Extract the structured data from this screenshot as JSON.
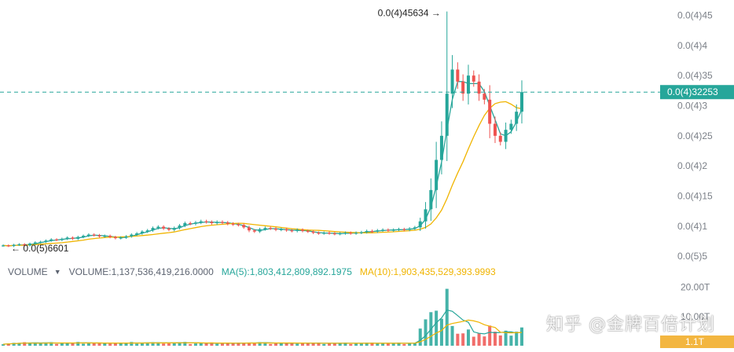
{
  "chart_data": {
    "type": "candlestick",
    "y_ticks": [
      "0.0(4)45",
      "0.0(4)4",
      "0.0(4)35",
      "0.0(4)3",
      "0.0(4)25",
      "0.0(4)2",
      "0.0(4)15",
      "0.0(4)1",
      "0.0(5)5"
    ],
    "y_tick_values": [
      4.5e-05,
      4e-05,
      3.5e-05,
      3e-05,
      2.5e-05,
      2e-05,
      1.5e-05,
      1e-05,
      5e-06
    ],
    "ylim": [
      4.5e-06,
      4.65e-05
    ],
    "current_price_label": "0.0(4)32253",
    "current_price": 3.2253e-05,
    "high_label": "0.0(4)45634",
    "high_value": 4.5634e-05,
    "low_label": "0.0(5)6601",
    "low_value": 6.601e-06,
    "candle_count": 98,
    "candles_close": [
      6.8e-06,
      6.7e-06,
      6.9e-06,
      7e-06,
      6.8e-06,
      7.1e-06,
      7.3e-06,
      7.4e-06,
      7.6e-06,
      7.8e-06,
      7.7e-06,
      7.9e-06,
      8.1e-06,
      7.9e-06,
      8.2e-06,
      8.4e-06,
      8.6e-06,
      8.5e-06,
      8.3e-06,
      8.4e-06,
      8.2e-06,
      8e-06,
      8.1e-06,
      8.3e-06,
      8.6e-06,
      8.8e-06,
      9.1e-06,
      9.3e-06,
      9.7e-06,
      9.9e-06,
      9.6e-06,
      9.4e-06,
      9.7e-06,
      1.01e-05,
      1.05e-05,
      1.04e-05,
      1.06e-05,
      1.08e-05,
      1.07e-05,
      1.05e-05,
      1.07e-05,
      1.06e-05,
      1.04e-05,
      1.03e-05,
      1.02e-05,
      9.8e-06,
      9.3e-06,
      9.1e-06,
      9.5e-06,
      9.7e-06,
      9.6e-06,
      9.4e-06,
      9.5e-06,
      9.3e-06,
      9.2e-06,
      9.4e-06,
      9.2e-06,
      9.1e-06,
      8.9e-06,
      8.8e-06,
      8.9e-06,
      8.8e-06,
      8.7e-06,
      8.8e-06,
      8.9e-06,
      8.8e-06,
      8.9e-06,
      9e-06,
      9.2e-06,
      9.1e-06,
      9.3e-06,
      9.4e-06,
      9.3e-06,
      9.4e-06,
      9.5e-06,
      9.4e-06,
      9.6e-06,
      9.8e-06,
      1.08e-05,
      1.28e-05,
      1.6e-05,
      2.1e-05,
      2.5e-05,
      3.2e-05,
      3.6e-05,
      3.4e-05,
      3.2e-05,
      3.5e-05,
      3.4e-05,
      3.2e-05,
      3.1e-05,
      2.7e-05,
      2.5e-05,
      2.4e-05,
      2.6e-05,
      2.7e-05,
      2.9e-05,
      3.2253e-05
    ],
    "ma_series": [
      {
        "name": "",
        "color": "#26a69a"
      },
      {
        "name": "",
        "color": "#f0b400"
      }
    ],
    "volume": {
      "title": "VOLUME",
      "value_label": "VOLUME:1,137,536,419,216.0000",
      "ma5_label": "MA(5):1,803,412,809,892.1975",
      "ma10_label": "MA(10):1,903,435,529,393.9993",
      "y_ticks": [
        "20.00T",
        "10.00T"
      ],
      "current_label": "1.1T",
      "spike_index": 83,
      "spike_value_T": 19.5
    },
    "colors": {
      "up": "#26a69a",
      "down": "#ef5350",
      "ma_fast": "#26a69a",
      "ma_slow": "#f0b400",
      "price_line": "#26a69a",
      "vol_badge": "#f3b640"
    }
  },
  "watermark": "知乎 @金牌百倍计划"
}
